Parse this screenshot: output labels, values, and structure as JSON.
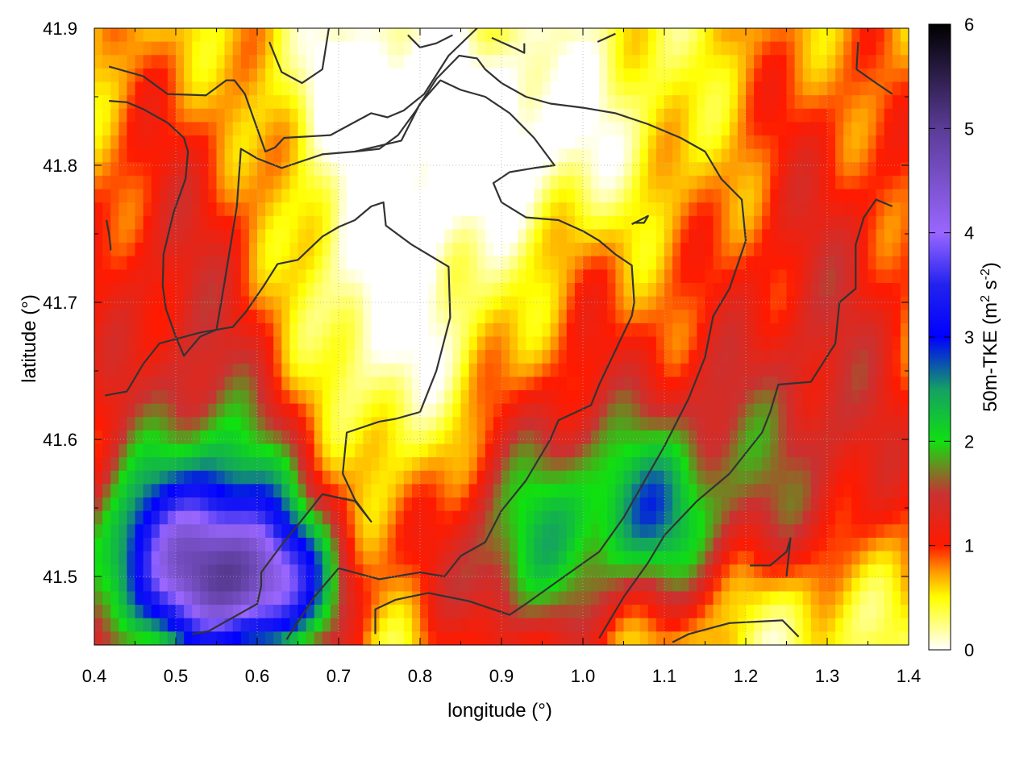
{
  "chart_data": {
    "type": "heatmap",
    "xlabel": "longitude (°)",
    "ylabel": "latitude (°)",
    "colorbar_label": "50m-TKE (m² s⁻²)",
    "colorbar_label_parts": {
      "pre": "50m-TKE (m",
      "sup1": "2",
      "mid": " s",
      "sup2": "-2",
      "post": ")"
    },
    "xlim": [
      0.4,
      1.4
    ],
    "ylim": [
      41.45,
      41.9
    ],
    "clim": [
      0,
      6
    ],
    "x_ticks": [
      0.4,
      0.5,
      0.6,
      0.7,
      0.8,
      0.9,
      1.0,
      1.1,
      1.2,
      1.3,
      1.4
    ],
    "x_tick_labels": [
      "0.4",
      "0.5",
      "0.6",
      "0.7",
      "0.8",
      "0.9",
      "1.0",
      "1.1",
      "1.2",
      "1.3",
      "1.4"
    ],
    "y_ticks": [
      41.5,
      41.6,
      41.7,
      41.8,
      41.9
    ],
    "y_tick_labels": [
      "41.5",
      "41.6",
      "41.7",
      "41.8",
      "41.9"
    ],
    "c_ticks": [
      0,
      1,
      2,
      3,
      4,
      5,
      6
    ],
    "c_tick_labels": [
      "0",
      "1",
      "2",
      "3",
      "4",
      "5",
      "6"
    ],
    "grid": true,
    "colormap": [
      [
        0,
        "#ffffff"
      ],
      [
        0.5,
        "#ffff00"
      ],
      [
        0.75,
        "#ff9900"
      ],
      [
        1.0,
        "#ff1a00"
      ],
      [
        1.5,
        "#c83232"
      ],
      [
        2.0,
        "#10e010"
      ],
      [
        2.5,
        "#14a064"
      ],
      [
        3.0,
        "#0000ff"
      ],
      [
        3.5,
        "#2222ee"
      ],
      [
        4.0,
        "#9966ff"
      ],
      [
        5.0,
        "#5a3c96"
      ],
      [
        6.0,
        "#000000"
      ]
    ],
    "field_features": [
      {
        "lon": 0.52,
        "lat": 41.505,
        "sx": 0.09,
        "sy": 0.05,
        "amp": 3.2
      },
      {
        "lon": 0.62,
        "lat": 41.49,
        "sx": 0.06,
        "sy": 0.035,
        "amp": 1.9
      },
      {
        "lon": 1.06,
        "lat": 41.56,
        "sx": 0.15,
        "sy": 0.07,
        "amp": 1.2
      },
      {
        "lon": 1.08,
        "lat": 41.54,
        "sx": 0.05,
        "sy": 0.04,
        "amp": 1.0
      },
      {
        "lon": 0.95,
        "lat": 41.52,
        "sx": 0.05,
        "sy": 0.06,
        "amp": 0.6
      },
      {
        "lon": 0.75,
        "lat": 41.72,
        "sx": 0.08,
        "sy": 0.1,
        "amp": -0.6
      },
      {
        "lon": 0.92,
        "lat": 41.82,
        "sx": 0.1,
        "sy": 0.05,
        "amp": -0.6
      },
      {
        "lon": 1.26,
        "lat": 41.47,
        "sx": 0.1,
        "sy": 0.04,
        "amp": -0.6
      },
      {
        "lon": 0.72,
        "lat": 41.86,
        "sx": 0.06,
        "sy": 0.03,
        "amp": -0.5
      }
    ],
    "field_base": [
      {
        "lon": 0.5,
        "lat": 41.7,
        "sx": 0.12,
        "sy": 0.14,
        "amp": 0.9
      },
      {
        "lon": 1.3,
        "lat": 41.68,
        "sx": 0.12,
        "sy": 0.18,
        "amp": 0.9
      },
      {
        "lon": 0.88,
        "lat": 41.5,
        "sx": 0.07,
        "sy": 0.05,
        "amp": 0.7
      },
      {
        "lon": 0.58,
        "lat": 41.57,
        "sx": 0.08,
        "sy": 0.06,
        "amp": 0.8
      },
      {
        "lon": 1.0,
        "lat": 41.72,
        "sx": 0.08,
        "sy": 0.06,
        "amp": 0.35
      }
    ],
    "contours": [
      [
        [
          0.418,
          41.872
        ],
        [
          0.46,
          41.865
        ],
        [
          0.49,
          41.852
        ],
        [
          0.537,
          41.851
        ],
        [
          0.562,
          41.862
        ],
        [
          0.572,
          41.862
        ],
        [
          0.585,
          41.852
        ],
        [
          0.61,
          41.81
        ],
        [
          0.622,
          41.813
        ],
        [
          0.633,
          41.82
        ],
        [
          0.69,
          41.822
        ],
        [
          0.74,
          41.838
        ],
        [
          0.76,
          41.835
        ],
        [
          0.78,
          41.84
        ],
        [
          0.805,
          41.852
        ],
        [
          0.835,
          41.88
        ],
        [
          0.87,
          41.9
        ]
      ],
      [
        [
          0.418,
          41.847
        ],
        [
          0.44,
          41.846
        ],
        [
          0.46,
          41.841
        ],
        [
          0.49,
          41.831
        ],
        [
          0.51,
          41.82
        ],
        [
          0.515,
          41.81
        ],
        [
          0.512,
          41.79
        ],
        [
          0.497,
          41.765
        ],
        [
          0.485,
          41.735
        ],
        [
          0.484,
          41.712
        ],
        [
          0.488,
          41.695
        ],
        [
          0.5,
          41.675
        ],
        [
          0.51,
          41.661
        ],
        [
          0.53,
          41.675
        ],
        [
          0.55,
          41.68
        ],
        [
          0.56,
          41.715
        ],
        [
          0.575,
          41.77
        ],
        [
          0.58,
          41.812
        ],
        [
          0.6,
          41.805
        ],
        [
          0.63,
          41.798
        ],
        [
          0.68,
          41.808
        ],
        [
          0.72,
          41.81
        ],
        [
          0.777,
          41.818
        ],
        [
          0.8,
          41.845
        ],
        [
          0.825,
          41.862
        ],
        [
          0.85,
          41.855
        ],
        [
          0.88,
          41.85
        ],
        [
          0.91,
          41.838
        ],
        [
          0.94,
          41.82
        ],
        [
          0.965,
          41.8
        ],
        [
          0.94,
          41.798
        ],
        [
          0.91,
          41.795
        ],
        [
          0.89,
          41.787
        ],
        [
          0.9,
          41.773
        ],
        [
          0.93,
          41.762
        ],
        [
          0.97,
          41.76
        ],
        [
          1.0,
          41.752
        ],
        [
          1.02,
          41.745
        ],
        [
          1.04,
          41.735
        ],
        [
          1.06,
          41.727
        ],
        [
          1.063,
          41.7
        ],
        [
          1.06,
          41.69
        ],
        [
          1.04,
          41.665
        ],
        [
          1.02,
          41.64
        ],
        [
          1.01,
          41.625
        ],
        [
          0.97,
          41.614
        ],
        [
          0.96,
          41.6
        ],
        [
          0.93,
          41.57
        ],
        [
          0.9,
          41.548
        ],
        [
          0.88,
          41.525
        ],
        [
          0.85,
          41.515
        ],
        [
          0.83,
          41.5
        ],
        [
          0.8,
          41.503
        ],
        [
          0.75,
          41.498
        ],
        [
          0.7,
          41.506
        ],
        [
          0.67,
          41.485
        ],
        [
          0.636,
          41.454
        ]
      ],
      [
        [
          0.413,
          41.632
        ],
        [
          0.44,
          41.635
        ],
        [
          0.46,
          41.655
        ],
        [
          0.48,
          41.67
        ],
        [
          0.53,
          41.678
        ],
        [
          0.57,
          41.682
        ],
        [
          0.586,
          41.693
        ],
        [
          0.608,
          41.712
        ],
        [
          0.625,
          41.728
        ],
        [
          0.65,
          41.731
        ],
        [
          0.68,
          41.748
        ],
        [
          0.7,
          41.755
        ],
        [
          0.72,
          41.76
        ],
        [
          0.74,
          41.77
        ],
        [
          0.755,
          41.773
        ],
        [
          0.758,
          41.756
        ],
        [
          0.79,
          41.742
        ],
        [
          0.835,
          41.726
        ],
        [
          0.837,
          41.689
        ],
        [
          0.82,
          41.65
        ],
        [
          0.8,
          41.62
        ],
        [
          0.77,
          41.615
        ],
        [
          0.75,
          41.613
        ],
        [
          0.71,
          41.605
        ],
        [
          0.705,
          41.575
        ],
        [
          0.72,
          41.556
        ],
        [
          0.74,
          41.54
        ],
        [
          0.72,
          41.555
        ],
        [
          0.68,
          41.56
        ],
        [
          0.66,
          41.545
        ],
        [
          0.63,
          41.523
        ],
        [
          0.605,
          41.503
        ],
        [
          0.605,
          41.493
        ],
        [
          0.6,
          41.48
        ],
        [
          0.57,
          41.47
        ],
        [
          0.54,
          41.46
        ],
        [
          0.52,
          41.458
        ]
      ],
      [
        [
          0.745,
          41.458
        ],
        [
          0.745,
          41.476
        ],
        [
          0.77,
          41.483
        ],
        [
          0.81,
          41.488
        ],
        [
          0.86,
          41.482
        ],
        [
          0.89,
          41.476
        ],
        [
          0.91,
          41.472
        ],
        [
          0.93,
          41.48
        ],
        [
          0.97,
          41.497
        ],
        [
          1.02,
          41.518
        ],
        [
          1.05,
          41.543
        ],
        [
          1.1,
          41.595
        ],
        [
          1.13,
          41.63
        ],
        [
          1.15,
          41.66
        ],
        [
          1.16,
          41.69
        ],
        [
          1.18,
          41.71
        ],
        [
          1.2,
          41.745
        ],
        [
          1.195,
          41.775
        ],
        [
          1.17,
          41.79
        ],
        [
          1.15,
          41.81
        ],
        [
          1.12,
          41.82
        ],
        [
          1.08,
          41.83
        ],
        [
          1.04,
          41.838
        ],
        [
          1.0,
          41.842
        ],
        [
          0.96,
          41.845
        ],
        [
          0.93,
          41.85
        ],
        [
          0.9,
          41.86
        ],
        [
          0.88,
          41.87
        ],
        [
          0.87,
          41.878
        ],
        [
          0.848,
          41.88
        ],
        [
          0.82,
          41.863
        ],
        [
          0.795,
          41.84
        ],
        [
          0.773,
          41.822
        ],
        [
          0.75,
          41.812
        ],
        [
          0.72,
          41.81
        ]
      ],
      [
        [
          1.02,
          41.455
        ],
        [
          1.05,
          41.485
        ],
        [
          1.08,
          41.51
        ],
        [
          1.1,
          41.53
        ],
        [
          1.14,
          41.555
        ],
        [
          1.18,
          41.575
        ],
        [
          1.2,
          41.59
        ],
        [
          1.22,
          41.605
        ],
        [
          1.23,
          41.62
        ],
        [
          1.24,
          41.64
        ],
        [
          1.28,
          41.642
        ],
        [
          1.31,
          41.67
        ],
        [
          1.315,
          41.7
        ],
        [
          1.335,
          41.71
        ],
        [
          1.335,
          41.742
        ],
        [
          1.345,
          41.762
        ],
        [
          1.36,
          41.775
        ],
        [
          1.38,
          41.77
        ]
      ],
      [
        [
          0.615,
          41.89
        ],
        [
          0.63,
          41.868
        ],
        [
          0.655,
          41.86
        ],
        [
          0.68,
          41.87
        ],
        [
          0.688,
          41.9
        ]
      ],
      [
        [
          1.338,
          41.89
        ],
        [
          1.336,
          41.87
        ],
        [
          1.36,
          41.86
        ],
        [
          1.38,
          41.852
        ]
      ],
      [
        [
          1.205,
          41.508
        ],
        [
          1.23,
          41.508
        ],
        [
          1.25,
          41.518
        ],
        [
          1.255,
          41.528
        ],
        [
          1.25,
          41.5
        ]
      ],
      [
        [
          1.11,
          41.452
        ],
        [
          1.13,
          41.458
        ],
        [
          1.18,
          41.466
        ],
        [
          1.245,
          41.468
        ],
        [
          1.265,
          41.456
        ]
      ],
      [
        [
          0.415,
          41.76
        ],
        [
          0.418,
          41.75
        ],
        [
          0.42,
          41.74
        ],
        [
          0.42,
          41.738
        ]
      ],
      [
        [
          1.06,
          41.757
        ],
        [
          1.08,
          41.763
        ],
        [
          1.075,
          41.758
        ],
        [
          1.062,
          41.758
        ]
      ],
      [
        [
          0.785,
          41.895
        ],
        [
          0.8,
          41.886
        ],
        [
          0.82,
          41.889
        ],
        [
          0.84,
          41.895
        ]
      ],
      [
        [
          0.888,
          41.893
        ],
        [
          0.918,
          41.885
        ],
        [
          0.928,
          41.882
        ],
        [
          0.928,
          41.889
        ]
      ],
      [
        [
          1.018,
          41.89
        ],
        [
          1.04,
          41.896
        ]
      ]
    ]
  }
}
